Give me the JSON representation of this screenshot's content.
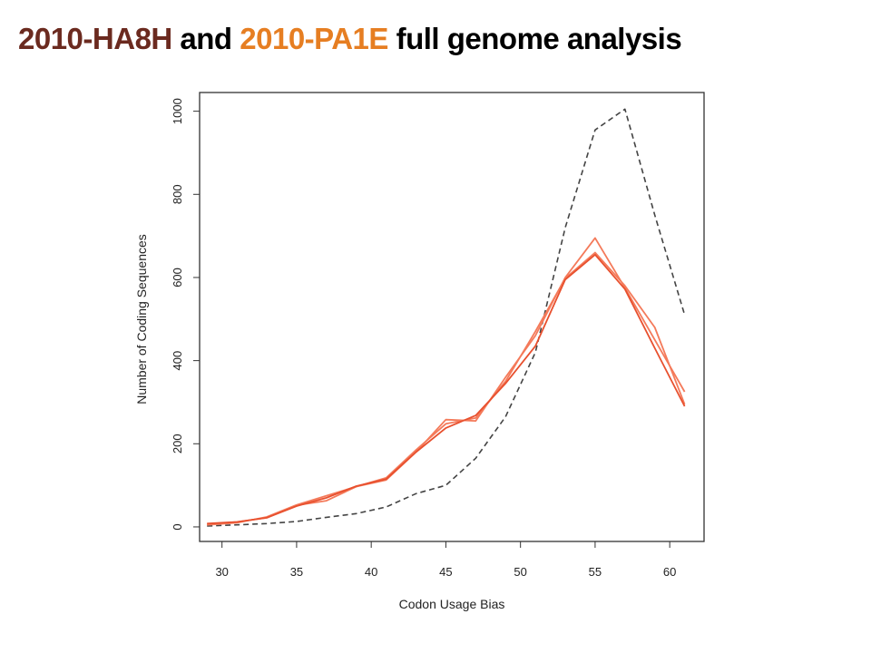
{
  "slide": {
    "title_part1": "2010-HA8H",
    "title_part2": " and ",
    "title_part3": "2010-PA1E",
    "title_part4": " full genome analysis",
    "color_part1": "#6b2a1f",
    "color_part3": "#e67e22",
    "color_text": "#000000"
  },
  "chart_data": {
    "type": "line",
    "xlabel": "Codon Usage Bias",
    "ylabel": "Number of Coding Sequences",
    "xlim": [
      28.5,
      62.3
    ],
    "ylim": [
      -35,
      1045
    ],
    "xticks": [
      30,
      35,
      40,
      45,
      50,
      55,
      60
    ],
    "yticks": [
      0,
      200,
      400,
      600,
      800,
      1000
    ],
    "grid": false,
    "series": [
      {
        "style": "dashed",
        "color": "#444444",
        "x": [
          29,
          31,
          33,
          35,
          37,
          39,
          41,
          43,
          45,
          47,
          49,
          51,
          53,
          55,
          57,
          59,
          61
        ],
        "y": [
          2,
          5,
          8,
          13,
          23,
          32,
          48,
          80,
          100,
          165,
          265,
          420,
          720,
          955,
          1005,
          750,
          510
        ]
      },
      {
        "style": "solid",
        "color": "#f47a5a",
        "x": [
          29,
          31,
          33,
          35,
          37,
          39,
          41,
          43,
          45,
          47,
          49,
          51,
          53,
          55,
          57,
          59,
          61
        ],
        "y": [
          6,
          12,
          22,
          52,
          63,
          97,
          113,
          180,
          258,
          255,
          360,
          460,
          600,
          695,
          575,
          450,
          325
        ]
      },
      {
        "style": "solid",
        "color": "#f47a5a",
        "x": [
          29,
          31,
          33,
          35,
          37,
          39,
          41,
          43,
          45,
          47,
          49,
          51,
          53,
          55,
          57,
          59,
          61
        ],
        "y": [
          5,
          10,
          24,
          53,
          75,
          97,
          118,
          185,
          248,
          262,
          350,
          470,
          598,
          660,
          580,
          480,
          295
        ]
      },
      {
        "style": "solid",
        "color": "#e8502e",
        "x": [
          29,
          31,
          33,
          35,
          37,
          39,
          41,
          43,
          45,
          47,
          49,
          51,
          53,
          55,
          57,
          59,
          61
        ],
        "y": [
          8,
          12,
          22,
          50,
          70,
          98,
          115,
          180,
          238,
          268,
          345,
          435,
          595,
          655,
          572,
          430,
          290
        ]
      }
    ]
  }
}
